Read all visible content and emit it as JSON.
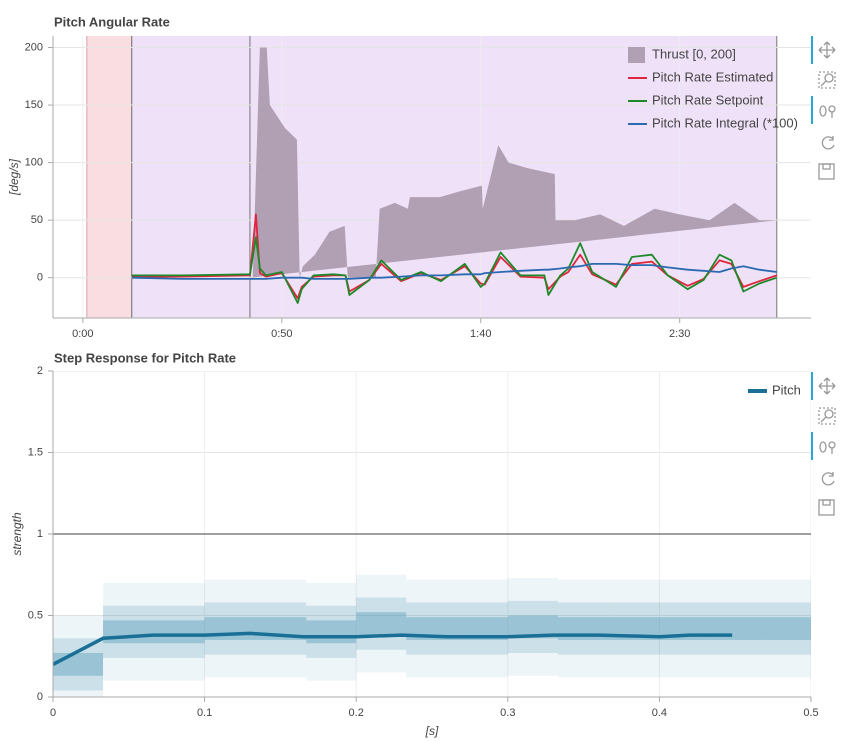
{
  "chart_data": [
    {
      "type": "line",
      "title": "Pitch Angular Rate",
      "y_label": "[deg/s]",
      "xlim": [
        -7.5,
        183
      ],
      "ylim": [
        -35,
        210
      ],
      "xticks": [
        {
          "value": 0,
          "label": "0:00"
        },
        {
          "value": 50,
          "label": "0:50"
        },
        {
          "value": 100,
          "label": "1:40"
        },
        {
          "value": 150,
          "label": "2:30"
        }
      ],
      "yticks": [
        0,
        50,
        100,
        150,
        200
      ],
      "grid": true,
      "legend": "top-right",
      "regions": [
        {
          "start": 1,
          "end": 12.3,
          "color": "#fadde1"
        },
        {
          "start": 12.3,
          "end": 42,
          "color": "#efe1f7"
        },
        {
          "start": 42,
          "end": 174.4,
          "color": "#efe1f7"
        }
      ],
      "x": [
        12.3,
        25,
        42,
        43.5,
        44.5,
        46,
        50,
        54,
        55,
        58,
        63,
        66,
        67,
        72,
        75,
        80,
        85,
        90,
        96,
        100,
        101,
        105,
        110,
        116,
        117,
        120,
        122,
        125,
        128,
        134,
        138,
        143,
        147,
        152,
        156,
        160,
        163,
        166,
        170,
        174.4
      ],
      "series": [
        {
          "name": "Thrust [0, 200]",
          "type": "area",
          "color": "#9c889e",
          "x": [
            42,
            42.7,
            44.5,
            46.2,
            47,
            50.8,
            53.8,
            54.5,
            55.3,
            58.3,
            62,
            65.8,
            66.6,
            73.6,
            74.6,
            78.4,
            81.7,
            82.2,
            89.7,
            94.7,
            100.3,
            100.5,
            104.4,
            107,
            112,
            118.6,
            118.8,
            123.6,
            130,
            136,
            143.7,
            150,
            157.5,
            163.8,
            170,
            174.4
          ],
          "values": [
            0,
            0,
            200,
            200,
            150,
            130,
            120,
            0,
            10,
            20,
            40,
            45,
            0,
            0,
            60,
            65,
            60,
            70,
            70,
            75,
            80,
            60,
            115,
            100,
            95,
            90,
            50,
            50,
            55,
            45,
            60,
            55,
            50,
            65,
            50,
            50
          ]
        },
        {
          "name": "Pitch Rate Estimated",
          "color": "#e0263f",
          "values": [
            1,
            1,
            2,
            55,
            4,
            1,
            4,
            -18,
            -8,
            1,
            2,
            2,
            -12,
            -2,
            12,
            -3,
            4,
            -2,
            10,
            -5,
            -6,
            18,
            1,
            0,
            -10,
            1,
            5,
            20,
            3,
            -6,
            12,
            14,
            2,
            -7,
            -1,
            15,
            12,
            -8,
            -3,
            2
          ]
        },
        {
          "name": "Pitch Rate Setpoint",
          "color": "#1d8a2a",
          "values": [
            2,
            2,
            3,
            35,
            8,
            2,
            5,
            -22,
            -10,
            2,
            3,
            2,
            -15,
            -2,
            15,
            -2,
            5,
            -3,
            12,
            -8,
            -5,
            22,
            2,
            2,
            -15,
            2,
            8,
            30,
            5,
            -8,
            18,
            20,
            2,
            -10,
            -2,
            20,
            15,
            -12,
            -5,
            0
          ]
        },
        {
          "name": "Pitch Rate Integral (*100)",
          "color": "#2b6ab0",
          "values": [
            0,
            -1,
            -1,
            -1,
            -1,
            -1,
            0,
            0,
            0,
            -1,
            -1,
            -1,
            -1,
            0,
            0,
            1,
            2,
            2,
            3,
            3,
            4,
            5,
            6,
            7,
            7,
            8,
            9,
            10,
            12,
            12,
            11,
            11,
            9,
            7,
            6,
            5,
            8,
            10,
            7,
            5
          ]
        }
      ]
    },
    {
      "type": "line",
      "title": "Step Response for Pitch Rate",
      "x_label": "[s]",
      "y_label": "strength",
      "xlim": [
        0,
        0.5
      ],
      "ylim": [
        0,
        2
      ],
      "xticks": [
        0,
        0.1,
        0.2,
        0.3,
        0.4,
        0.5
      ],
      "yticks": [
        0,
        0.5,
        1,
        1.5,
        2
      ],
      "grid": true,
      "legend": "top-right",
      "hlines": [
        1
      ],
      "heatmap": {
        "color": "#2b83a8",
        "bins": [
          0,
          0.033,
          0.067,
          0.1,
          0.133,
          0.167,
          0.2,
          0.233,
          0.267,
          0.3,
          0.333,
          0.367,
          0.4,
          0.433,
          0.467,
          0.5
        ],
        "values": [
          0.2,
          0.4,
          0.4,
          0.42,
          0.42,
          0.4,
          0.45,
          0.42,
          0.42,
          0.43,
          0.42,
          0.42,
          0.42,
          0.42,
          0.42
        ]
      },
      "x": [
        0,
        0.033,
        0.066,
        0.1,
        0.13,
        0.165,
        0.2,
        0.23,
        0.26,
        0.3,
        0.33,
        0.36,
        0.4,
        0.42,
        0.448
      ],
      "series": [
        {
          "name": "Pitch",
          "color": "#1a6f96",
          "values": [
            0.2,
            0.36,
            0.38,
            0.38,
            0.39,
            0.37,
            0.37,
            0.38,
            0.37,
            0.37,
            0.38,
            0.38,
            0.37,
            0.38,
            0.38
          ]
        }
      ]
    }
  ]
}
